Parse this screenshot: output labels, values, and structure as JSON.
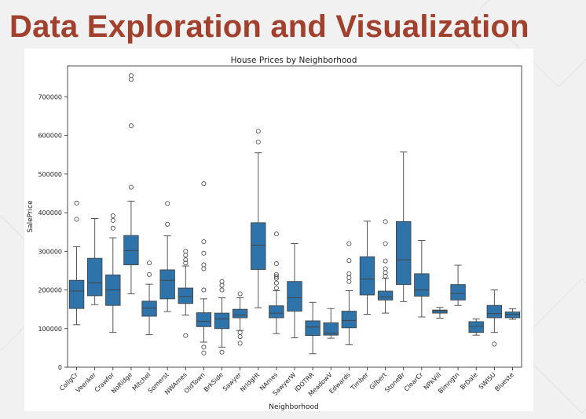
{
  "slide": {
    "title": "Data Exploration and Visualization"
  },
  "colors": {
    "title": "#a1402c",
    "box": "#2e74aa",
    "background": "#f1f1f1"
  },
  "chart_data": {
    "type": "box",
    "title": "House Prices by Neighborhood",
    "xlabel": "Neighborhood",
    "ylabel": "SalePrice",
    "ylim": [
      0,
      780000
    ],
    "yticks": [
      0,
      100000,
      200000,
      300000,
      400000,
      500000,
      600000,
      700000
    ],
    "grid": false,
    "categories": [
      "CollgCr",
      "Veenker",
      "Crawfor",
      "NoRidge",
      "Mitchel",
      "Somerst",
      "NWAmes",
      "OldTown",
      "BrkSide",
      "Sawyer",
      "NridgHt",
      "NAmes",
      "SawyerW",
      "IDOTRR",
      "MeadowV",
      "Edwards",
      "Timber",
      "Gilbert",
      "StoneBr",
      "ClearCr",
      "NPkVill",
      "Blmngtn",
      "BrDale",
      "SWISU",
      "Blueste"
    ],
    "boxes": [
      {
        "min": 110000,
        "q1": 152000,
        "median": 197000,
        "q3": 225000,
        "max": 312000,
        "outliers": [
          383000,
          425000
        ]
      },
      {
        "min": 162000,
        "q1": 185000,
        "median": 218000,
        "q3": 282000,
        "max": 385000,
        "outliers": []
      },
      {
        "min": 90000,
        "q1": 160000,
        "median": 200000,
        "q3": 239000,
        "max": 335000,
        "outliers": [
          360000,
          380000,
          392000
        ]
      },
      {
        "min": 190000,
        "q1": 265000,
        "median": 302000,
        "q3": 341000,
        "max": 430000,
        "outliers": [
          466000,
          625000,
          745000,
          755000
        ]
      },
      {
        "min": 84000,
        "q1": 132000,
        "median": 153000,
        "q3": 171000,
        "max": 215000,
        "outliers": [
          240000,
          270000
        ]
      },
      {
        "min": 144000,
        "q1": 177000,
        "median": 225000,
        "q3": 252000,
        "max": 340000,
        "outliers": [
          370000,
          424000
        ]
      },
      {
        "min": 135000,
        "q1": 165000,
        "median": 183000,
        "q3": 205000,
        "max": 262000,
        "outliers": [
          82000,
          270000,
          278000,
          290000,
          300000
        ]
      },
      {
        "min": 65000,
        "q1": 105000,
        "median": 119000,
        "q3": 141000,
        "max": 177000,
        "outliers": [
          37000,
          52000,
          200000,
          255000,
          265000,
          295000,
          325000,
          475000
        ]
      },
      {
        "min": 52000,
        "q1": 100000,
        "median": 125000,
        "q3": 140000,
        "max": 180000,
        "outliers": [
          39000,
          200000,
          212000,
          222000
        ]
      },
      {
        "min": 95000,
        "q1": 128000,
        "median": 135000,
        "q3": 150000,
        "max": 180000,
        "outliers": [
          62000,
          79000,
          90000,
          190000
        ]
      },
      {
        "min": 154000,
        "q1": 253000,
        "median": 316000,
        "q3": 374000,
        "max": 555000,
        "outliers": [
          583000,
          611000
        ]
      },
      {
        "min": 87000,
        "q1": 128000,
        "median": 140000,
        "q3": 159000,
        "max": 198000,
        "outliers": [
          205000,
          218000,
          230000,
          235000,
          240000,
          268000,
          345000
        ]
      },
      {
        "min": 76000,
        "q1": 145000,
        "median": 180000,
        "q3": 222000,
        "max": 320000,
        "outliers": []
      },
      {
        "min": 35000,
        "q1": 82000,
        "median": 104000,
        "q3": 120000,
        "max": 168000,
        "outliers": []
      },
      {
        "min": 75000,
        "q1": 83000,
        "median": 88000,
        "q3": 115000,
        "max": 152000,
        "outliers": []
      },
      {
        "min": 58000,
        "q1": 102000,
        "median": 121000,
        "q3": 145000,
        "max": 198000,
        "outliers": [
          222000,
          232000,
          242000,
          276000,
          320000
        ]
      },
      {
        "min": 137000,
        "q1": 187000,
        "median": 228000,
        "q3": 286000,
        "max": 378000,
        "outliers": []
      },
      {
        "min": 140000,
        "q1": 174000,
        "median": 182000,
        "q3": 197000,
        "max": 230000,
        "outliers": [
          236000,
          245000,
          255000,
          275000,
          320000,
          377000
        ]
      },
      {
        "min": 170000,
        "q1": 214000,
        "median": 278000,
        "q3": 377000,
        "max": 557000,
        "outliers": []
      },
      {
        "min": 130000,
        "q1": 184000,
        "median": 200000,
        "q3": 242000,
        "max": 328000,
        "outliers": []
      },
      {
        "min": 127000,
        "q1": 140000,
        "median": 146000,
        "q3": 148000,
        "max": 155000,
        "outliers": []
      },
      {
        "min": 160000,
        "q1": 174000,
        "median": 191000,
        "q3": 214000,
        "max": 264000,
        "outliers": []
      },
      {
        "min": 83000,
        "q1": 90000,
        "median": 106000,
        "q3": 118000,
        "max": 125000,
        "outliers": []
      },
      {
        "min": 90000,
        "q1": 128000,
        "median": 139000,
        "q3": 160000,
        "max": 200000,
        "outliers": [
          60000
        ]
      },
      {
        "min": 124000,
        "q1": 128000,
        "median": 137000,
        "q3": 143000,
        "max": 151000,
        "outliers": []
      }
    ]
  }
}
